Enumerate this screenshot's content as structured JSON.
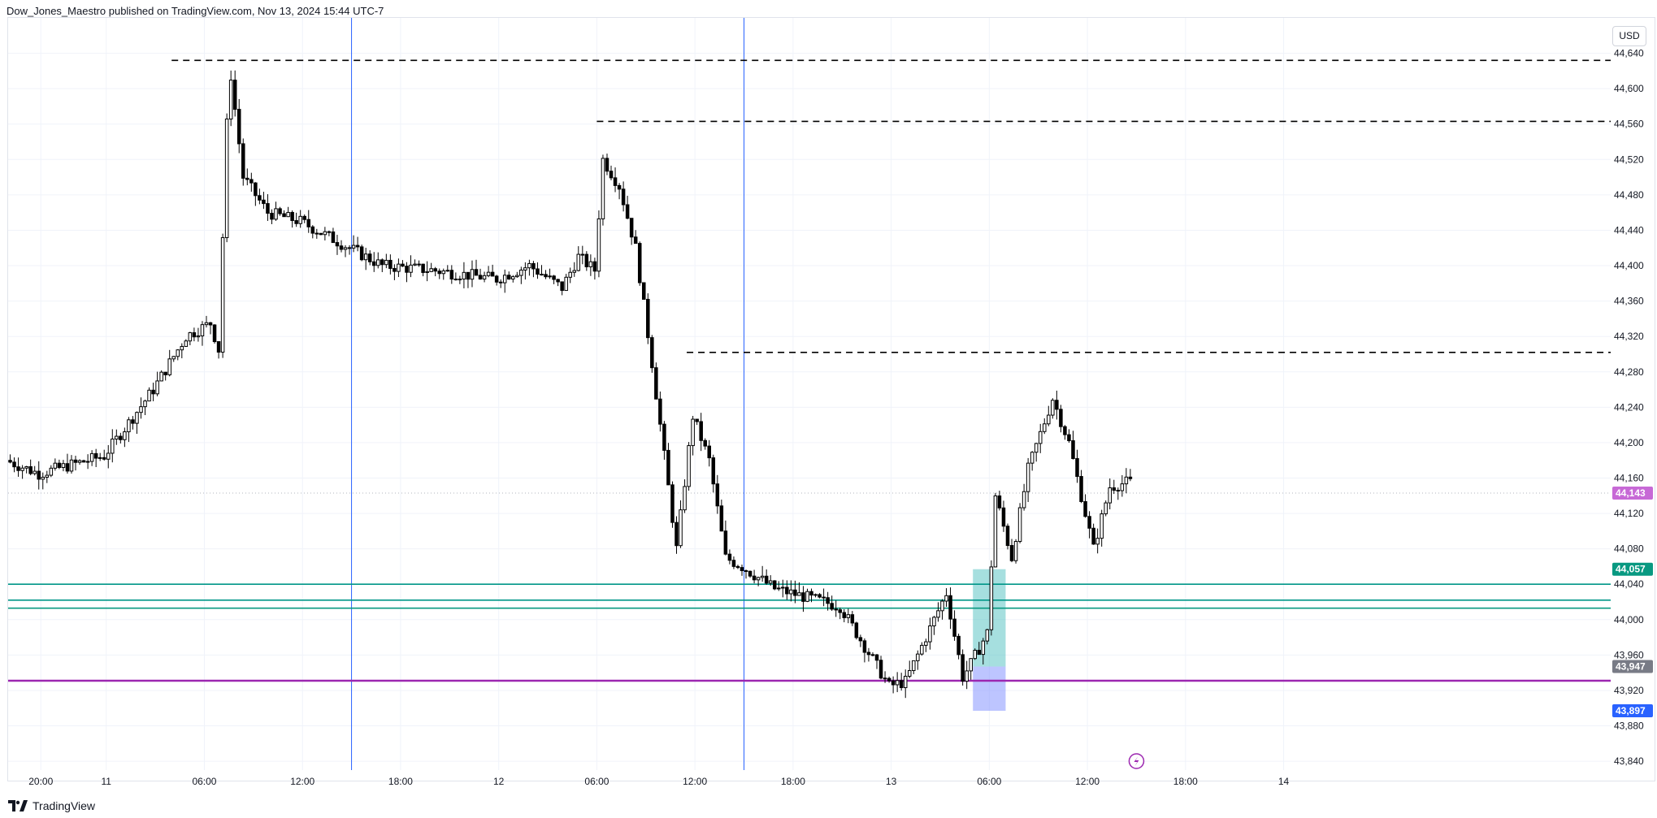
{
  "header": {
    "publish_text": "Dow_Jones_Maestro published on TradingView.com, Nov 13, 2024 15:44 UTC-7"
  },
  "footer": {
    "brand": "TradingView"
  },
  "currency": "USD",
  "colors": {
    "grid": "#f0f3fa",
    "axis_text": "#131722",
    "candle_up_fill": "#ffffff",
    "candle_down_fill": "#000000",
    "candle_border": "#000000",
    "session_line": "#2962ff",
    "dashed_level": "#000000",
    "teal_level": "#009688",
    "green_level": "#089981",
    "magenta_level": "#9c27b0",
    "box_teal": "#4dbfbf",
    "box_blue": "#7b8cff",
    "badge_current": "#c769d6",
    "badge_teal": "#089981",
    "badge_grey": "#787b86",
    "badge_blue": "#2962ff",
    "flash_icon": "#9c27b0"
  },
  "chart_data": {
    "type": "candlestick",
    "title": "",
    "xlabel": "",
    "ylabel": "",
    "ylim": [
      43830,
      44680
    ],
    "y_ticks": [
      "44,640",
      "44,600",
      "44,560",
      "44,520",
      "44,480",
      "44,440",
      "44,400",
      "44,360",
      "44,320",
      "44,280",
      "44,240",
      "44,200",
      "44,160",
      "44,120",
      "44,080",
      "44,040",
      "44,000",
      "43,960",
      "43,920",
      "43,880",
      "43,840"
    ],
    "y_tick_values": [
      44640,
      44600,
      44560,
      44520,
      44480,
      44440,
      44400,
      44360,
      44320,
      44280,
      44240,
      44200,
      44160,
      44120,
      44080,
      44040,
      44000,
      43960,
      43920,
      43880,
      43840
    ],
    "x_time_range": [
      "2024-11-10 18:00",
      "2024-11-14 20:00"
    ],
    "x_ticks": [
      {
        "label": "20:00",
        "time": "2024-11-10 20:00"
      },
      {
        "label": "11",
        "time": "2024-11-11 00:00"
      },
      {
        "label": "06:00",
        "time": "2024-11-11 06:00"
      },
      {
        "label": "12:00",
        "time": "2024-11-11 12:00"
      },
      {
        "label": "18:00",
        "time": "2024-11-11 18:00"
      },
      {
        "label": "12",
        "time": "2024-11-12 00:00"
      },
      {
        "label": "06:00",
        "time": "2024-11-12 06:00"
      },
      {
        "label": "12:00",
        "time": "2024-11-12 12:00"
      },
      {
        "label": "18:00",
        "time": "2024-11-12 18:00"
      },
      {
        "label": "13",
        "time": "2024-11-13 00:00"
      },
      {
        "label": "06:00",
        "time": "2024-11-13 06:00"
      },
      {
        "label": "12:00",
        "time": "2024-11-13 12:00"
      },
      {
        "label": "18:00",
        "time": "2024-11-13 18:00"
      },
      {
        "label": "14",
        "time": "2024-11-14 00:00"
      }
    ],
    "session_lines": [
      "2024-11-11 15:00",
      "2024-11-12 15:00"
    ],
    "price_path": [
      {
        "t": "2024-11-10 18:00",
        "p": 44180
      },
      {
        "t": "2024-11-10 20:00",
        "p": 44165
      },
      {
        "t": "2024-11-11 00:00",
        "p": 44185
      },
      {
        "t": "2024-11-11 03:00",
        "p": 44260
      },
      {
        "t": "2024-11-11 05:00",
        "p": 44320
      },
      {
        "t": "2024-11-11 06:30",
        "p": 44335
      },
      {
        "t": "2024-11-11 07:00",
        "p": 44305
      },
      {
        "t": "2024-11-11 07:30",
        "p": 44560
      },
      {
        "t": "2024-11-11 07:45",
        "p": 44615
      },
      {
        "t": "2024-11-11 08:30",
        "p": 44500
      },
      {
        "t": "2024-11-11 10:00",
        "p": 44460
      },
      {
        "t": "2024-11-11 12:00",
        "p": 44450
      },
      {
        "t": "2024-11-11 15:00",
        "p": 44420
      },
      {
        "t": "2024-11-11 17:00",
        "p": 44400
      },
      {
        "t": "2024-11-11 20:00",
        "p": 44395
      },
      {
        "t": "2024-11-12 00:00",
        "p": 44385
      },
      {
        "t": "2024-11-12 02:00",
        "p": 44400
      },
      {
        "t": "2024-11-12 04:00",
        "p": 44375
      },
      {
        "t": "2024-11-12 05:00",
        "p": 44410
      },
      {
        "t": "2024-11-12 06:00",
        "p": 44395
      },
      {
        "t": "2024-11-12 06:30",
        "p": 44520
      },
      {
        "t": "2024-11-12 07:30",
        "p": 44490
      },
      {
        "t": "2024-11-12 08:30",
        "p": 44420
      },
      {
        "t": "2024-11-12 09:30",
        "p": 44290
      },
      {
        "t": "2024-11-12 11:00",
        "p": 44080
      },
      {
        "t": "2024-11-12 12:00",
        "p": 44230
      },
      {
        "t": "2024-11-12 13:00",
        "p": 44180
      },
      {
        "t": "2024-11-12 14:00",
        "p": 44070
      },
      {
        "t": "2024-11-12 15:00",
        "p": 44060
      },
      {
        "t": "2024-11-12 17:00",
        "p": 44035
      },
      {
        "t": "2024-11-12 19:00",
        "p": 44025
      },
      {
        "t": "2024-11-12 21:00",
        "p": 44015
      },
      {
        "t": "2024-11-13 00:00",
        "p": 43925
      },
      {
        "t": "2024-11-13 01:00",
        "p": 43930
      },
      {
        "t": "2024-11-13 02:30",
        "p": 43990
      },
      {
        "t": "2024-11-13 03:30",
        "p": 44030
      },
      {
        "t": "2024-11-13 04:30",
        "p": 43935
      },
      {
        "t": "2024-11-13 05:00",
        "p": 43950
      },
      {
        "t": "2024-11-13 06:00",
        "p": 43985
      },
      {
        "t": "2024-11-13 06:30",
        "p": 44140
      },
      {
        "t": "2024-11-13 07:30",
        "p": 44070
      },
      {
        "t": "2024-11-13 08:30",
        "p": 44170
      },
      {
        "t": "2024-11-13 10:00",
        "p": 44250
      },
      {
        "t": "2024-11-13 11:00",
        "p": 44200
      },
      {
        "t": "2024-11-13 12:00",
        "p": 44120
      },
      {
        "t": "2024-11-13 12:30",
        "p": 44080
      },
      {
        "t": "2024-11-13 13:30",
        "p": 44150
      },
      {
        "t": "2024-11-13 14:30",
        "p": 44155
      }
    ],
    "dashed_levels": [
      {
        "price": 44632,
        "from": "2024-11-11 04:00"
      },
      {
        "price": 44563,
        "from": "2024-11-12 06:00"
      },
      {
        "price": 44302,
        "from": "2024-11-12 11:30"
      }
    ],
    "solid_levels": [
      {
        "price": 44040,
        "color_key": "teal_level"
      },
      {
        "price": 44022,
        "color_key": "teal_level"
      },
      {
        "price": 44013,
        "color_key": "green_level"
      },
      {
        "price": 43931,
        "color_key": "magenta_level"
      }
    ],
    "boxes": [
      {
        "from": "2024-11-13 05:00",
        "to": "2024-11-13 07:00",
        "top": 44057,
        "bottom": 43947,
        "color_key": "box_teal"
      },
      {
        "from": "2024-11-13 05:00",
        "to": "2024-11-13 07:00",
        "top": 43947,
        "bottom": 43897,
        "color_key": "box_blue"
      }
    ],
    "current_price": 44143,
    "price_labels": [
      {
        "text": "44,143",
        "price": 44143,
        "color_key": "badge_current"
      },
      {
        "text": "44,057",
        "price": 44057,
        "color_key": "badge_teal"
      },
      {
        "text": "43,947",
        "price": 43947,
        "color_key": "badge_grey"
      },
      {
        "text": "43,897",
        "price": 43897,
        "color_key": "badge_blue"
      }
    ],
    "flash_marker_time": "2024-11-13 15:00"
  }
}
